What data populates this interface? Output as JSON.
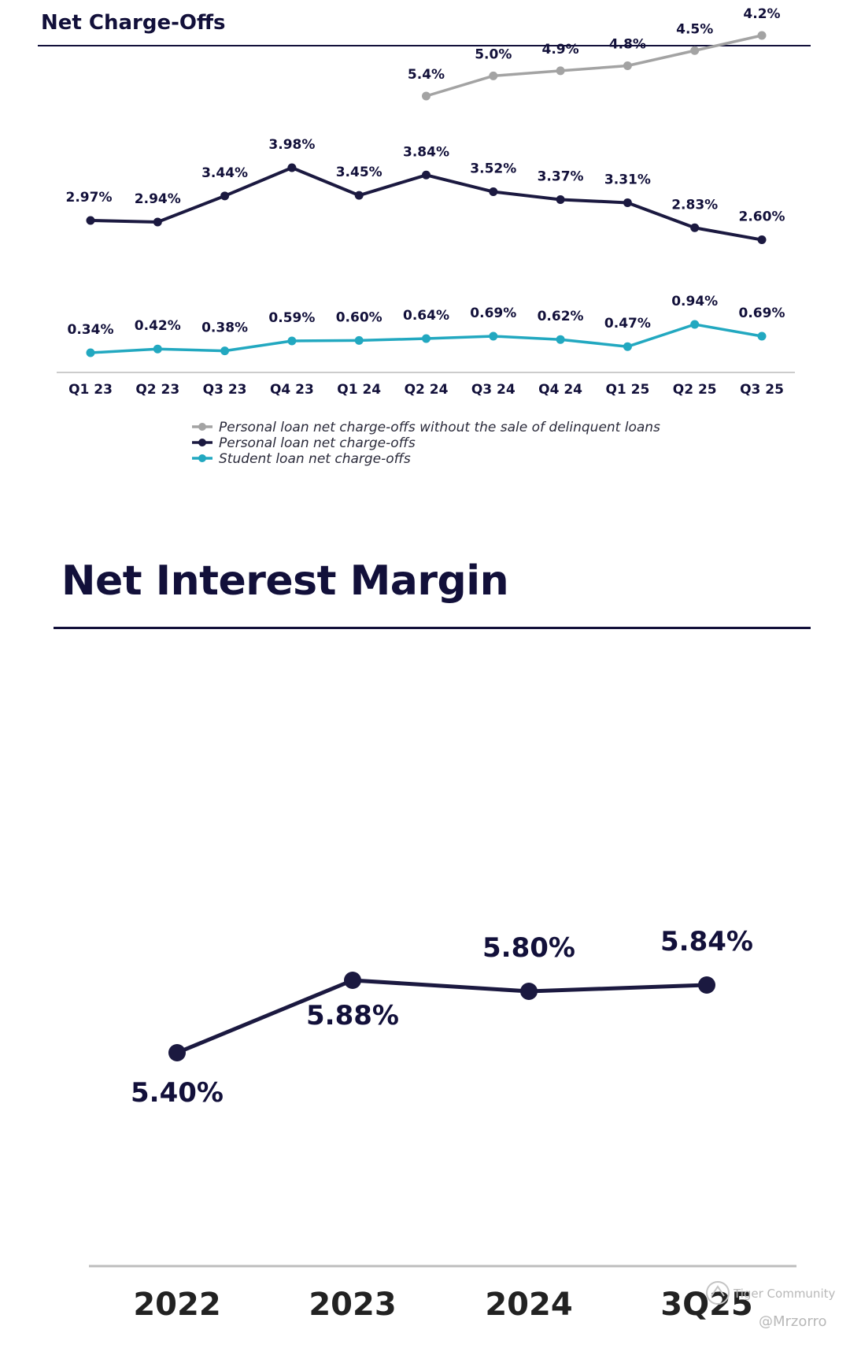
{
  "colors": {
    "navy": "#1b1940",
    "gray": "#a3a3a3",
    "teal": "#22a8c0"
  },
  "watermark": {
    "icon": "tiger-community-logo-icon",
    "brand": "Tiger Community",
    "handle": "@Mrzorro"
  },
  "chart_data": [
    {
      "type": "line",
      "title": "Net Charge-Offs",
      "categories": [
        "Q1 23",
        "Q2 23",
        "Q3 23",
        "Q4 23",
        "Q1 24",
        "Q2 24",
        "Q3 24",
        "Q4 24",
        "Q1 25",
        "Q2 25",
        "Q3 25"
      ],
      "ylim": [
        0,
        6
      ],
      "grid": false,
      "legend_position": "bottom-center",
      "series": [
        {
          "name": "Personal loan net charge-offs without the sale of delinquent loans",
          "color": "#a3a3a3",
          "values": [
            null,
            null,
            null,
            null,
            null,
            5.4,
            5.0,
            4.9,
            4.8,
            4.5,
            4.2
          ],
          "labels": [
            null,
            null,
            null,
            null,
            null,
            "5.4%",
            "5.0%",
            "4.9%",
            "4.8%",
            "4.5%",
            "4.2%"
          ]
        },
        {
          "name": "Personal loan net charge-offs",
          "color": "#1b1940",
          "values": [
            2.97,
            2.94,
            3.44,
            3.98,
            3.45,
            3.84,
            3.52,
            3.37,
            3.31,
            2.83,
            2.6
          ],
          "labels": [
            "2.97%",
            "2.94%",
            "3.44%",
            "3.98%",
            "3.45%",
            "3.84%",
            "3.52%",
            "3.37%",
            "3.31%",
            "2.83%",
            "2.60%"
          ]
        },
        {
          "name": "Student loan net charge-offs",
          "color": "#22a8c0",
          "values": [
            0.34,
            0.42,
            0.38,
            0.59,
            0.6,
            0.64,
            0.69,
            0.62,
            0.47,
            0.94,
            0.69
          ],
          "labels": [
            "0.34%",
            "0.42%",
            "0.38%",
            "0.59%",
            "0.60%",
            "0.64%",
            "0.69%",
            "0.62%",
            "0.47%",
            "0.94%",
            "0.69%"
          ]
        }
      ]
    },
    {
      "type": "line",
      "title": "Net Interest Margin",
      "categories": [
        "2022",
        "2023",
        "2024",
        "3Q25"
      ],
      "ylim": [
        5.3,
        6.0
      ],
      "grid": false,
      "series": [
        {
          "color": "#1b1940",
          "values": [
            5.4,
            5.88,
            5.8,
            5.84
          ],
          "labels": [
            "5.40%",
            "5.88%",
            "5.80%",
            "5.84%"
          ]
        }
      ]
    }
  ]
}
